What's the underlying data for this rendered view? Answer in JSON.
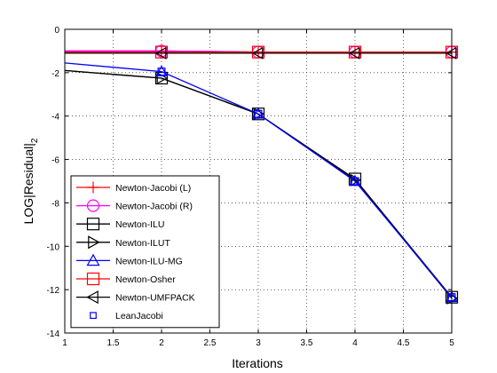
{
  "chart_data": {
    "type": "line",
    "title": "",
    "xlabel": "Iterations",
    "ylabel": "LOG|Residual|",
    "ylabel_subscript": "2",
    "xlim": [
      1,
      5
    ],
    "ylim": [
      -14,
      0
    ],
    "xticks": [
      "1",
      "1.5",
      "2",
      "2.5",
      "3",
      "3.5",
      "4",
      "4.5",
      "5"
    ],
    "yticks": [
      "0",
      "-2",
      "-4",
      "-6",
      "-8",
      "-10",
      "-12",
      "-14"
    ],
    "grid": true,
    "legend_position": "bottom-left",
    "series": [
      {
        "name": "Newton-Jacobi (L)",
        "color": "#ff0000",
        "marker": "plus",
        "x": [
          1,
          2,
          3,
          4,
          5
        ],
        "y": [
          -1.0,
          -1.0,
          -1.05,
          -1.05,
          -1.05
        ]
      },
      {
        "name": "Newton-Jacobi (R)",
        "color": "#ff00ff",
        "marker": "circle",
        "x": [
          1,
          2,
          3,
          4,
          5
        ],
        "y": [
          -1.0,
          -1.0,
          -1.05,
          -1.05,
          -1.05
        ]
      },
      {
        "name": "Newton-ILU",
        "color": "#000000",
        "marker": "square",
        "x": [
          1,
          2,
          3,
          4,
          5
        ],
        "y": [
          -1.9,
          -2.25,
          -3.9,
          -6.9,
          -12.35
        ]
      },
      {
        "name": "Newton-ILUT",
        "color": "#000000",
        "marker": "triangle-right",
        "x": [
          1,
          2,
          3,
          4,
          5
        ],
        "y": [
          -1.9,
          -2.25,
          -3.9,
          -6.95,
          -12.4
        ]
      },
      {
        "name": "Newton-ILU-MG",
        "color": "#0000ff",
        "marker": "triangle-up",
        "x": [
          1,
          2,
          3,
          4,
          5
        ],
        "y": [
          -1.55,
          -1.95,
          -3.9,
          -7.0,
          -12.35
        ]
      },
      {
        "name": "Newton-Osher",
        "color": "#ff0000",
        "marker": "square",
        "x": [
          1,
          2,
          3,
          4,
          5
        ],
        "y": [
          -1.05,
          -1.05,
          -1.05,
          -1.05,
          -1.05
        ]
      },
      {
        "name": "Newton-UMFPACK",
        "color": "#000000",
        "marker": "triangle-left",
        "x": [
          1,
          2,
          3,
          4,
          5
        ],
        "y": [
          -1.1,
          -1.1,
          -1.1,
          -1.1,
          -1.1
        ]
      },
      {
        "name": "LeanJacobi",
        "color": "#0000ff",
        "marker": "square-small",
        "x": [
          1,
          2,
          3,
          4,
          5
        ],
        "y": [
          -1.55,
          -1.95,
          -3.9,
          -7.0,
          -12.35
        ]
      }
    ]
  }
}
